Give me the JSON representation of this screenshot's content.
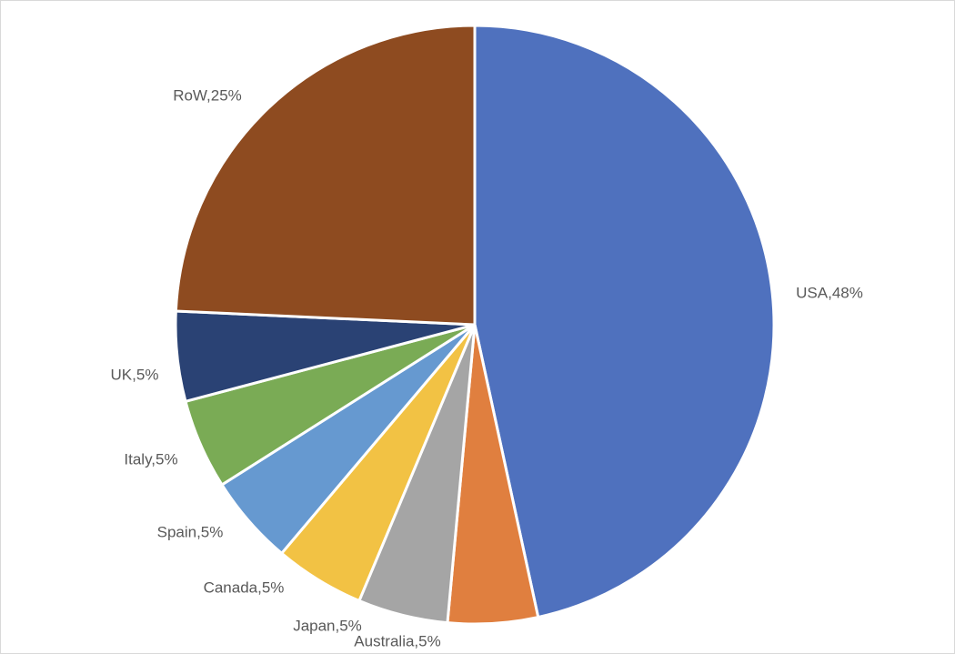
{
  "chart_data": {
    "type": "pie",
    "categories": [
      "USA",
      "Australia",
      "Japan",
      "Canada",
      "Spain",
      "Italy",
      "UK",
      "RoW"
    ],
    "values": [
      48,
      5,
      5,
      5,
      5,
      5,
      5,
      25
    ],
    "value_labels": [
      "USA,48%",
      "Australia,5%",
      "Japan,5%",
      "Canada,5%",
      "Spain,5%",
      "Italy,5%",
      "UK,5%",
      "RoW,25%"
    ],
    "colors": [
      "#4f71be",
      "#e07f3f",
      "#a5a5a5",
      "#f2c244",
      "#6699d0",
      "#7aab55",
      "#2a4274",
      "#8e4b20"
    ]
  }
}
